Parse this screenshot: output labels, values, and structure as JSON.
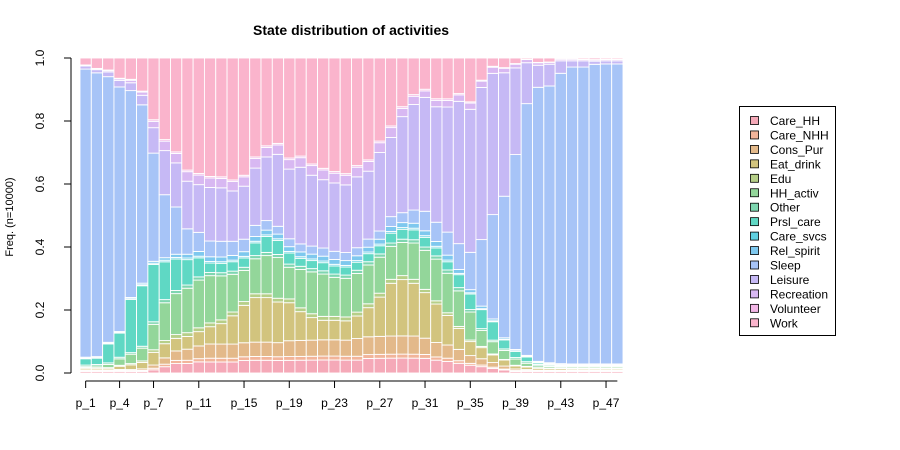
{
  "chart_data": {
    "type": "bar",
    "stacked": true,
    "title": "State distribution of activities",
    "ylabel": "Freq. (n=10000)",
    "xlabel": "",
    "ylim": [
      0,
      1
    ],
    "y_ticks": [
      "0.0",
      "0.2",
      "0.4",
      "0.6",
      "0.8",
      "1.0"
    ],
    "categories": [
      "p_1",
      "p_2",
      "p_3",
      "p_4",
      "p_5",
      "p_6",
      "p_7",
      "p_8",
      "p_9",
      "p_10",
      "p_11",
      "p_12",
      "p_13",
      "p_14",
      "p_15",
      "p_16",
      "p_17",
      "p_18",
      "p_19",
      "p_20",
      "p_21",
      "p_22",
      "p_23",
      "p_24",
      "p_25",
      "p_26",
      "p_27",
      "p_28",
      "p_29",
      "p_30",
      "p_31",
      "p_32",
      "p_33",
      "p_34",
      "p_35",
      "p_36",
      "p_37",
      "p_38",
      "p_39",
      "p_40",
      "p_41",
      "p_42",
      "p_43",
      "p_44",
      "p_45",
      "p_46",
      "p_47",
      "p_48"
    ],
    "x_tick_labels": [
      "p_1",
      "p_4",
      "p_7",
      "p_11",
      "p_15",
      "p_19",
      "p_23",
      "p_27",
      "p_31",
      "p_35",
      "p_39",
      "p_43",
      "p_47"
    ],
    "legend_position": "right",
    "series": [
      {
        "name": "Care_HH",
        "color": "#F5A9B8",
        "values": [
          0.005,
          0.005,
          0.005,
          0.005,
          0.005,
          0.005,
          0.01,
          0.02,
          0.03,
          0.03,
          0.035,
          0.035,
          0.035,
          0.035,
          0.04,
          0.04,
          0.04,
          0.04,
          0.04,
          0.04,
          0.04,
          0.04,
          0.04,
          0.04,
          0.04,
          0.045,
          0.045,
          0.045,
          0.045,
          0.045,
          0.045,
          0.04,
          0.035,
          0.03,
          0.025,
          0.02,
          0.015,
          0.01,
          0.005,
          0.005,
          0.005,
          0.005,
          0.005,
          0.005,
          0.005,
          0.005,
          0.005,
          0.005
        ]
      },
      {
        "name": "Care_NHH",
        "color": "#F2B49A",
        "values": [
          0.003,
          0.003,
          0.003,
          0.003,
          0.003,
          0.003,
          0.005,
          0.008,
          0.01,
          0.01,
          0.01,
          0.012,
          0.012,
          0.012,
          0.012,
          0.012,
          0.012,
          0.012,
          0.012,
          0.012,
          0.012,
          0.012,
          0.012,
          0.012,
          0.012,
          0.012,
          0.012,
          0.012,
          0.012,
          0.012,
          0.012,
          0.01,
          0.01,
          0.008,
          0.006,
          0.005,
          0.004,
          0.003,
          0.003,
          0.003,
          0.002,
          0.002,
          0.002,
          0.002,
          0.002,
          0.002,
          0.002,
          0.002
        ]
      },
      {
        "name": "Cons_Pur",
        "color": "#E3B98A",
        "values": [
          0.002,
          0.002,
          0.002,
          0.003,
          0.003,
          0.005,
          0.01,
          0.02,
          0.03,
          0.035,
          0.04,
          0.045,
          0.045,
          0.045,
          0.045,
          0.045,
          0.045,
          0.045,
          0.05,
          0.05,
          0.05,
          0.05,
          0.05,
          0.05,
          0.055,
          0.055,
          0.055,
          0.055,
          0.055,
          0.055,
          0.05,
          0.045,
          0.04,
          0.035,
          0.025,
          0.02,
          0.015,
          0.01,
          0.005,
          0.003,
          0.002,
          0.002,
          0.002,
          0.002,
          0.002,
          0.002,
          0.002,
          0.002
        ]
      },
      {
        "name": "Eat_drink",
        "color": "#D2C47E",
        "values": [
          0.005,
          0.005,
          0.005,
          0.01,
          0.015,
          0.02,
          0.04,
          0.045,
          0.04,
          0.04,
          0.045,
          0.055,
          0.065,
          0.09,
          0.12,
          0.14,
          0.14,
          0.13,
          0.12,
          0.09,
          0.07,
          0.06,
          0.06,
          0.06,
          0.07,
          0.09,
          0.12,
          0.16,
          0.17,
          0.16,
          0.14,
          0.12,
          0.09,
          0.065,
          0.045,
          0.035,
          0.025,
          0.02,
          0.01,
          0.008,
          0.006,
          0.005,
          0.005,
          0.004,
          0.004,
          0.004,
          0.004,
          0.004
        ]
      },
      {
        "name": "Edu",
        "color": "#B6CF88",
        "values": [
          0.002,
          0.002,
          0.002,
          0.003,
          0.004,
          0.005,
          0.008,
          0.01,
          0.012,
          0.012,
          0.012,
          0.012,
          0.012,
          0.012,
          0.012,
          0.012,
          0.012,
          0.012,
          0.012,
          0.012,
          0.012,
          0.012,
          0.012,
          0.012,
          0.012,
          0.012,
          0.012,
          0.012,
          0.012,
          0.012,
          0.01,
          0.01,
          0.008,
          0.006,
          0.005,
          0.004,
          0.003,
          0.002,
          0.002,
          0.002,
          0.002,
          0.002,
          0.002,
          0.002,
          0.002,
          0.002,
          0.002,
          0.002
        ]
      },
      {
        "name": "HH_activ",
        "color": "#93D69A",
        "values": [
          0.003,
          0.005,
          0.01,
          0.02,
          0.03,
          0.04,
          0.08,
          0.12,
          0.13,
          0.14,
          0.15,
          0.15,
          0.14,
          0.12,
          0.1,
          0.11,
          0.12,
          0.13,
          0.1,
          0.12,
          0.13,
          0.13,
          0.12,
          0.12,
          0.12,
          0.12,
          0.11,
          0.1,
          0.1,
          0.11,
          0.12,
          0.13,
          0.12,
          0.11,
          0.09,
          0.05,
          0.04,
          0.03,
          0.02,
          0.01,
          0.006,
          0.005,
          0.004,
          0.004,
          0.004,
          0.004,
          0.004,
          0.004
        ]
      },
      {
        "name": "Other",
        "color": "#7ED6B0",
        "values": [
          0.005,
          0.005,
          0.005,
          0.005,
          0.005,
          0.006,
          0.008,
          0.01,
          0.01,
          0.01,
          0.01,
          0.01,
          0.01,
          0.01,
          0.01,
          0.01,
          0.01,
          0.01,
          0.01,
          0.01,
          0.01,
          0.01,
          0.01,
          0.01,
          0.01,
          0.01,
          0.01,
          0.01,
          0.01,
          0.01,
          0.01,
          0.01,
          0.01,
          0.01,
          0.008,
          0.006,
          0.005,
          0.005,
          0.005,
          0.005,
          0.004,
          0.004,
          0.003,
          0.003,
          0.003,
          0.003,
          0.003,
          0.003
        ]
      },
      {
        "name": "Prsl_care",
        "color": "#5FD8C4",
        "values": [
          0.02,
          0.02,
          0.06,
          0.075,
          0.17,
          0.19,
          0.18,
          0.12,
          0.1,
          0.08,
          0.06,
          0.03,
          0.03,
          0.03,
          0.03,
          0.04,
          0.05,
          0.045,
          0.035,
          0.025,
          0.025,
          0.025,
          0.025,
          0.025,
          0.025,
          0.025,
          0.025,
          0.03,
          0.03,
          0.03,
          0.03,
          0.025,
          0.025,
          0.04,
          0.05,
          0.06,
          0.06,
          0.03,
          0.02,
          0.015,
          0.005,
          0.003,
          0.002,
          0.002,
          0.002,
          0.002,
          0.002,
          0.002
        ]
      },
      {
        "name": "Care_svcs",
        "color": "#5FD0E0",
        "values": [
          0.002,
          0.002,
          0.002,
          0.002,
          0.002,
          0.003,
          0.004,
          0.005,
          0.005,
          0.005,
          0.005,
          0.005,
          0.005,
          0.005,
          0.005,
          0.005,
          0.005,
          0.005,
          0.005,
          0.005,
          0.005,
          0.005,
          0.005,
          0.005,
          0.005,
          0.005,
          0.005,
          0.005,
          0.005,
          0.005,
          0.005,
          0.005,
          0.005,
          0.004,
          0.004,
          0.003,
          0.003,
          0.002,
          0.002,
          0.002,
          0.002,
          0.002,
          0.002,
          0.002,
          0.002,
          0.002,
          0.002,
          0.002
        ]
      },
      {
        "name": "Rel_spirit",
        "color": "#7EC8EE",
        "values": [
          0.003,
          0.003,
          0.003,
          0.003,
          0.004,
          0.005,
          0.006,
          0.008,
          0.01,
          0.012,
          0.015,
          0.015,
          0.015,
          0.015,
          0.015,
          0.015,
          0.015,
          0.015,
          0.015,
          0.015,
          0.015,
          0.015,
          0.015,
          0.015,
          0.015,
          0.015,
          0.015,
          0.015,
          0.015,
          0.015,
          0.015,
          0.015,
          0.015,
          0.012,
          0.01,
          0.008,
          0.006,
          0.005,
          0.004,
          0.003,
          0.003,
          0.003,
          0.003,
          0.003,
          0.003,
          0.003,
          0.003,
          0.003
        ]
      },
      {
        "name": "Sleep",
        "color": "#A7C4F7",
        "values": [
          0.91,
          0.9,
          0.84,
          0.76,
          0.66,
          0.56,
          0.34,
          0.2,
          0.15,
          0.08,
          0.06,
          0.05,
          0.05,
          0.045,
          0.04,
          0.035,
          0.03,
          0.025,
          0.025,
          0.025,
          0.025,
          0.025,
          0.025,
          0.025,
          0.025,
          0.025,
          0.025,
          0.03,
          0.03,
          0.04,
          0.06,
          0.06,
          0.07,
          0.08,
          0.12,
          0.21,
          0.34,
          0.47,
          0.63,
          0.8,
          0.87,
          0.89,
          0.93,
          0.95,
          0.95,
          0.95,
          0.96,
          0.96
        ]
      },
      {
        "name": "Leisure",
        "color": "#C6B9F5",
        "values": [
          0.01,
          0.01,
          0.015,
          0.02,
          0.025,
          0.03,
          0.08,
          0.14,
          0.14,
          0.15,
          0.15,
          0.17,
          0.17,
          0.16,
          0.17,
          0.18,
          0.2,
          0.23,
          0.22,
          0.24,
          0.22,
          0.21,
          0.21,
          0.21,
          0.22,
          0.21,
          0.24,
          0.24,
          0.29,
          0.32,
          0.35,
          0.36,
          0.38,
          0.44,
          0.46,
          0.48,
          0.46,
          0.41,
          0.28,
          0.13,
          0.07,
          0.07,
          0.04,
          0.02,
          0.02,
          0.01,
          0.01,
          0.01
        ]
      },
      {
        "name": "Recreation",
        "color": "#D8B8F2",
        "values": [
          0.002,
          0.003,
          0.004,
          0.005,
          0.008,
          0.01,
          0.02,
          0.03,
          0.03,
          0.03,
          0.03,
          0.03,
          0.03,
          0.03,
          0.03,
          0.03,
          0.03,
          0.03,
          0.03,
          0.03,
          0.03,
          0.03,
          0.03,
          0.03,
          0.03,
          0.03,
          0.03,
          0.03,
          0.025,
          0.025,
          0.02,
          0.02,
          0.02,
          0.02,
          0.02,
          0.02,
          0.02,
          0.015,
          0.012,
          0.01,
          0.008,
          0.006,
          0.005,
          0.005,
          0.004,
          0.004,
          0.004,
          0.004
        ]
      },
      {
        "name": "Volunteer",
        "color": "#F2B6E6",
        "values": [
          0.001,
          0.001,
          0.002,
          0.002,
          0.003,
          0.003,
          0.005,
          0.005,
          0.005,
          0.005,
          0.005,
          0.005,
          0.005,
          0.005,
          0.005,
          0.005,
          0.005,
          0.005,
          0.005,
          0.005,
          0.005,
          0.005,
          0.005,
          0.005,
          0.005,
          0.005,
          0.005,
          0.005,
          0.005,
          0.005,
          0.005,
          0.005,
          0.005,
          0.004,
          0.004,
          0.003,
          0.003,
          0.002,
          0.002,
          0.001,
          0.001,
          0.001,
          0.001,
          0.001,
          0.001,
          0.001,
          0.001,
          0.001
        ]
      },
      {
        "name": "Work",
        "color": "#FAB4CC",
        "values": [
          0.022,
          0.033,
          0.038,
          0.063,
          0.068,
          0.104,
          0.194,
          0.259,
          0.298,
          0.353,
          0.363,
          0.376,
          0.378,
          0.388,
          0.376,
          0.311,
          0.276,
          0.273,
          0.316,
          0.307,
          0.329,
          0.339,
          0.349,
          0.359,
          0.334,
          0.315,
          0.254,
          0.206,
          0.147,
          0.111,
          0.096,
          0.127,
          0.124,
          0.11,
          0.141,
          0.07,
          0.027,
          0.032,
          0.018,
          0.004,
          0.014,
          0.013,
          0.003,
          0.003,
          0.004,
          0.005,
          0.004,
          0.004
        ]
      }
    ]
  }
}
